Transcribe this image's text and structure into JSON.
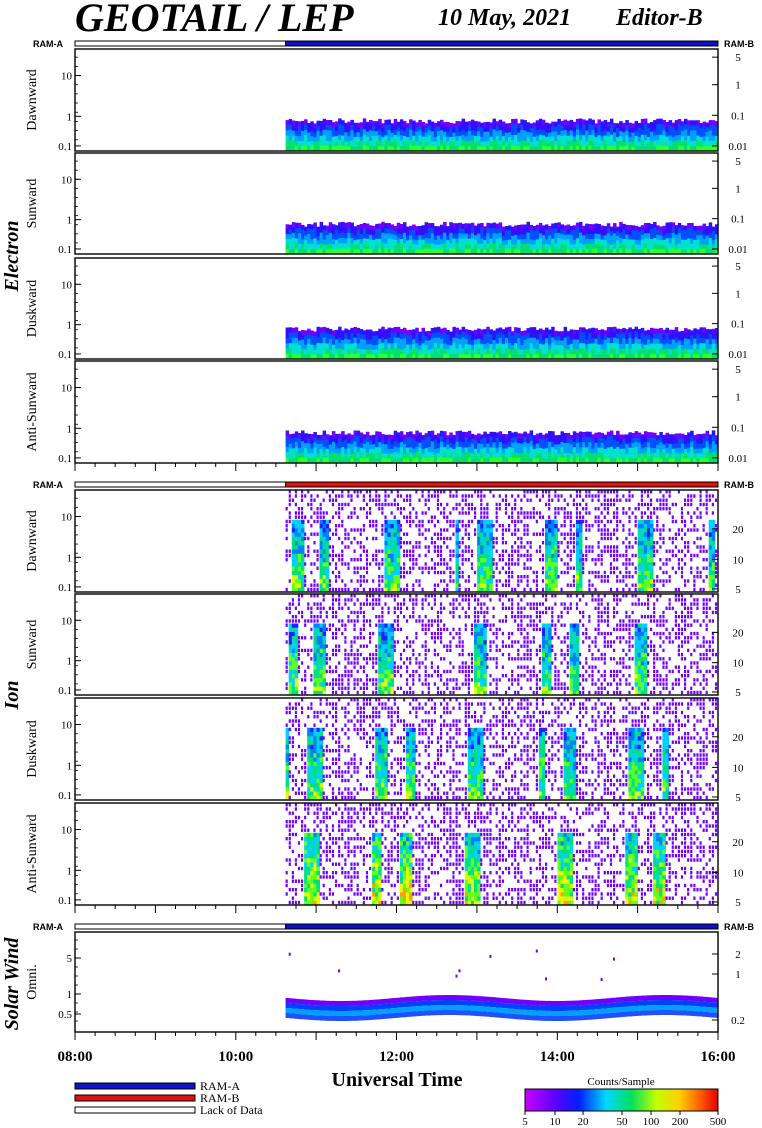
{
  "title": "GEOTAIL / LEP",
  "date": "10 May, 2021",
  "editor": "Editor-B",
  "ram_a_label": "RAM-A",
  "ram_b_label": "RAM-B",
  "colors": {
    "ram_a": "#1010c8",
    "ram_b": "#e01010",
    "lack": "#ffffff"
  },
  "chart_data": {
    "type": "heatmap",
    "xlabel": "Universal Time",
    "x_ticks": [
      "08:00",
      "10:00",
      "12:00",
      "14:00",
      "16:00"
    ],
    "x_range_hours": [
      8,
      16
    ],
    "data_start_hour": 10.62,
    "groups": [
      {
        "name": "Electron",
        "status_bar": [
          "lack",
          "ram_a"
        ],
        "panels": [
          {
            "label": "Dawnward",
            "left_ticks": [
              "10",
              "1",
              "0.1"
            ],
            "right_ticks": [
              "5",
              "1",
              "0.1",
              "0.01"
            ]
          },
          {
            "label": "Sunward",
            "left_ticks": [
              "10",
              "1",
              "0.1"
            ],
            "right_ticks": [
              "5",
              "1",
              "0.1",
              "0.01"
            ]
          },
          {
            "label": "Duskward",
            "left_ticks": [
              "10",
              "1",
              "0.1"
            ],
            "right_ticks": [
              "5",
              "1",
              "0.1",
              "0.01"
            ]
          },
          {
            "label": "Anti-Sunward",
            "left_ticks": [
              "10",
              "1",
              "0.1"
            ],
            "right_ticks": [
              "5",
              "1",
              "0.1",
              "0.01"
            ]
          }
        ]
      },
      {
        "name": "Ion",
        "status_bar": [
          "lack",
          "ram_b"
        ],
        "panels": [
          {
            "label": "Dawnward",
            "left_ticks": [
              "10",
              "1",
              "0.1"
            ],
            "right_ticks": [
              "20",
              "10",
              "5"
            ]
          },
          {
            "label": "Sunward",
            "left_ticks": [
              "10",
              "1",
              "0.1"
            ],
            "right_ticks": [
              "20",
              "10",
              "5"
            ]
          },
          {
            "label": "Duskward",
            "left_ticks": [
              "10",
              "1",
              "0.1"
            ],
            "right_ticks": [
              "20",
              "10",
              "5"
            ]
          },
          {
            "label": "Anti-Sunward",
            "left_ticks": [
              "10",
              "1",
              "0.1"
            ],
            "right_ticks": [
              "20",
              "10",
              "5"
            ]
          }
        ]
      },
      {
        "name": "Solar Wind",
        "status_bar": [
          "lack",
          "ram_a"
        ],
        "panels": [
          {
            "label": "Omni.",
            "left_ticks": [
              "5",
              "1",
              "0.5"
            ],
            "right_ticks": [
              "2",
              "1",
              "0.2"
            ]
          }
        ]
      }
    ],
    "legend": {
      "items": [
        {
          "label": "RAM-A",
          "color_key": "ram_a"
        },
        {
          "label": "RAM-B",
          "color_key": "ram_b"
        },
        {
          "label": "Lack of Data",
          "color_key": "lack"
        }
      ],
      "colorbar_title": "Counts/Sample",
      "colorbar_ticks": [
        "5",
        "10",
        "20",
        "50",
        "100",
        "200",
        "500"
      ]
    }
  }
}
